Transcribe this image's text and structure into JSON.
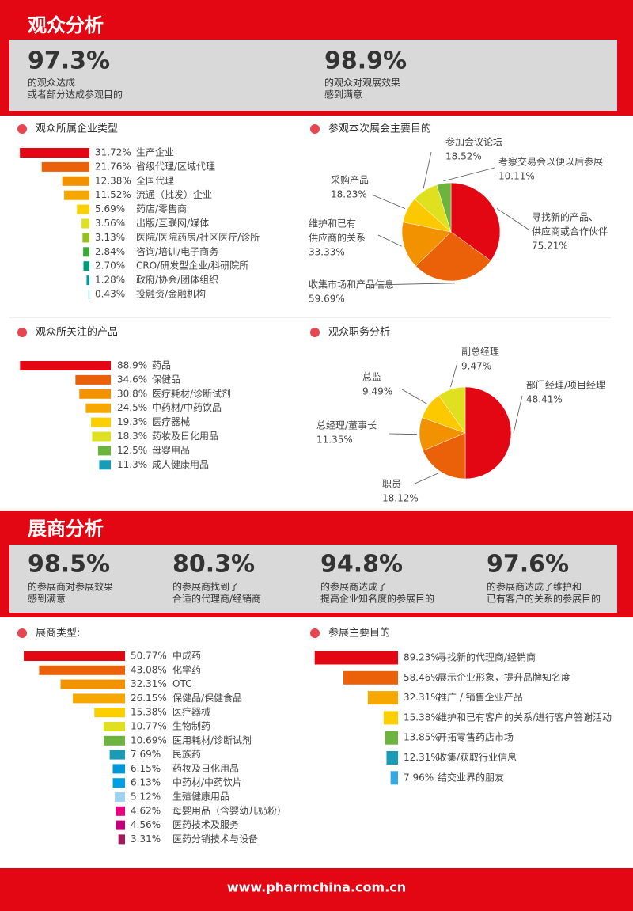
{
  "sections": [
    {
      "title": "观众分析",
      "stats": [
        {
          "value": "97.3%",
          "lines": [
            "的观众达成",
            "或者部分达成参观目的"
          ]
        },
        {
          "value": "98.9%",
          "lines": [
            "的观众对观展效果",
            "感到满意"
          ]
        }
      ]
    },
    {
      "title": "展商分析",
      "stats": [
        {
          "value": "98.5%",
          "lines": [
            "的参展商对参展效果",
            "感到满意"
          ]
        },
        {
          "value": "80.3%",
          "lines": [
            "的参展商找到了",
            "合适的代理商/经销商"
          ]
        },
        {
          "value": "94.8%",
          "lines": [
            "的参展商达成了",
            "提高企业知名度的参展目的"
          ]
        },
        {
          "value": "97.6%",
          "lines": [
            "的参展商达成了维护和",
            "已有客户的关系的参展目的"
          ]
        }
      ]
    }
  ],
  "chart_data": [
    {
      "type": "bar",
      "orientation": "horizontal",
      "title": "观众所属企业类型",
      "categories": [
        "生产企业",
        "省级代理/区域代理",
        "全国代理",
        "流通（批发）企业",
        "药店/零售商",
        "出版/互联网/媒体",
        "医院/医院药房/社区医疗/诊所",
        "咨询/培训/电子商务",
        "CRO/研发型企业/科研院所",
        "政府/协会/团体组织",
        "投融资/金融机构"
      ],
      "values": [
        31.72,
        21.76,
        12.38,
        11.52,
        5.69,
        3.56,
        3.13,
        2.84,
        2.7,
        1.28,
        0.43
      ],
      "value_labels": [
        "31.72%",
        "21.76%",
        "12.38%",
        "11.52%",
        "5.69%",
        "3.56%",
        "3.13%",
        "2.84%",
        "2.70%",
        "1.28%",
        "0.43%"
      ],
      "colors": [
        "#e30613",
        "#eb6109",
        "#f39200",
        "#f7a800",
        "#fcd000",
        "#dfe020",
        "#95c11f",
        "#3aaa35",
        "#009a77",
        "#0096a8",
        "#36a9e1"
      ]
    },
    {
      "type": "pie",
      "title": "参观本次展会主要目的",
      "categories": [
        [
          "寻找新的产品、",
          "供应商或合作伙伴"
        ],
        [
          "收集市场和产品信息"
        ],
        [
          "维护和已有",
          "供应商的关系"
        ],
        [
          "采购产品"
        ],
        [
          "参加会议论坛"
        ],
        [
          "考察交易会以便以后参展"
        ]
      ],
      "values": [
        75.21,
        59.69,
        33.33,
        18.23,
        18.52,
        10.11
      ],
      "value_labels": [
        "75.21%",
        "59.69%",
        "33.33%",
        "18.23%",
        "18.52%",
        "10.11%"
      ],
      "colors": [
        "#e30613",
        "#eb6109",
        "#f39200",
        "#fcc800",
        "#dfe020",
        "#6cb33f"
      ]
    },
    {
      "type": "bar",
      "orientation": "horizontal",
      "title": "观众所关注的产品",
      "categories": [
        "药品",
        "保健品",
        "医疗耗材/诊断试剂",
        "中药材/中药饮品",
        "医疗器械",
        "药妆及日化用品",
        "母婴用品",
        "成人健康用品"
      ],
      "values": [
        88.9,
        34.6,
        30.8,
        24.5,
        19.3,
        18.3,
        12.5,
        11.3
      ],
      "value_labels": [
        "88.9%",
        "34.6%",
        "30.8%",
        "24.5%",
        "19.3%",
        "18.3%",
        "12.5%",
        "11.3%"
      ],
      "colors": [
        "#e30613",
        "#eb6109",
        "#f39200",
        "#f7a800",
        "#fcd000",
        "#dfe020",
        "#6cb33f",
        "#1a9bb5"
      ]
    },
    {
      "type": "pie",
      "title": "观众职务分析",
      "categories": [
        [
          "部门经理/项目经理"
        ],
        [
          "职员"
        ],
        [
          "总经理/董事长"
        ],
        [
          "总监"
        ],
        [
          "副总经理"
        ]
      ],
      "values": [
        48.41,
        18.12,
        11.35,
        9.49,
        9.47
      ],
      "value_labels": [
        "48.41%",
        "18.12%",
        "11.35%",
        "9.49%",
        "9.47%"
      ],
      "colors": [
        "#e30613",
        "#eb6109",
        "#f39200",
        "#fcc800",
        "#dfe020"
      ]
    },
    {
      "type": "bar",
      "orientation": "horizontal",
      "title": "展商类型:",
      "categories": [
        "中成药",
        "化学药",
        "OTC",
        "保健品/保健食品",
        "医疗器械",
        "生物制药",
        "医用耗材/诊断试剂",
        "民族药",
        "药妆及日化用品",
        "中药材/中药饮片",
        "生殖健康用品",
        "母婴用品（含婴幼儿奶粉）",
        "医药技术及服务",
        "医药分销技术与设备"
      ],
      "values": [
        50.77,
        43.08,
        32.31,
        26.15,
        15.38,
        10.77,
        10.69,
        7.69,
        6.15,
        6.13,
        5.12,
        4.62,
        4.56,
        3.31
      ],
      "value_labels": [
        "50.77%",
        "43.08%",
        "32.31%",
        "26.15%",
        "15.38%",
        "10.77%",
        "10.69%",
        "7.69%",
        "6.15%",
        "6.13%",
        "5.12%",
        "4.62%",
        "4.56%",
        "3.31%"
      ],
      "colors": [
        "#e30613",
        "#eb6109",
        "#f39200",
        "#f7a800",
        "#fcd000",
        "#dfe020",
        "#6cb33f",
        "#1a9bb5",
        "#0097d7",
        "#009fe3",
        "#9dd3f0",
        "#e6007e",
        "#c2007a",
        "#a3195b"
      ]
    },
    {
      "type": "bar",
      "orientation": "horizontal",
      "title": "参展主要目的",
      "categories": [
        "寻找新的代理商/经销商",
        "展示企业形象，提升品牌知名度",
        "推广 / 销售企业产品",
        "维护和已有客户的关系/进行客户答谢活动",
        "开拓零售药店市场",
        "收集/获取行业信息",
        "结交业界的朋友"
      ],
      "values": [
        89.23,
        58.46,
        32.31,
        15.38,
        13.85,
        12.31,
        7.96
      ],
      "value_labels": [
        "89.23%",
        "58.46%",
        "32.31%",
        "15.38%",
        "13.85%",
        "12.31%",
        "7.96%"
      ],
      "colors": [
        "#e30613",
        "#eb6109",
        "#f7a800",
        "#fcd000",
        "#6cb33f",
        "#1a9bb5",
        "#36a9e1"
      ]
    }
  ],
  "footer": "www.pharmchina.com.cn"
}
